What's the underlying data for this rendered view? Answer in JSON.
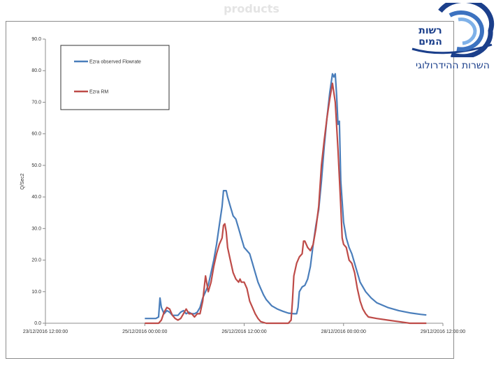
{
  "slide": {
    "title": "products"
  },
  "logo": {
    "name": "רשות המים",
    "service": "השרות ההידרולוגי"
  },
  "chart_data": {
    "type": "line",
    "ylabel": "Q/Sec2",
    "xlabel": "",
    "ylim": [
      0,
      90
    ],
    "yticks": [
      0,
      10,
      20,
      30,
      40,
      50,
      60,
      70,
      80,
      90
    ],
    "ytick_labels": [
      "0.0",
      "10.0",
      "20.0",
      "30.0",
      "40.0",
      "50.0",
      "60.0",
      "70.0",
      "80.0",
      "90.0"
    ],
    "x_unit": "hours from 23/12/2016 12:00:00",
    "xlim": [
      0,
      144
    ],
    "xticks": [
      0,
      36,
      72,
      108,
      144
    ],
    "xtick_labels": [
      "23/12/2016 12:00:00",
      "25/12/2016 00:00:00",
      "26/12/2016 12:00:00",
      "28/12/2016 00:00:00",
      "29/12/2016 12:00:00"
    ],
    "grid": false,
    "legend": "top-left",
    "colors": {
      "observed": "#4a7ebb",
      "rm": "#be4b48"
    },
    "series": [
      {
        "name": "Ezra observed Flowrate",
        "color": "#4a7ebb",
        "points": [
          [
            36,
            1.5
          ],
          [
            40,
            1.5
          ],
          [
            41,
            2
          ],
          [
            41.5,
            8
          ],
          [
            42,
            5
          ],
          [
            43,
            3
          ],
          [
            44,
            4
          ],
          [
            45,
            3.5
          ],
          [
            46,
            2.5
          ],
          [
            48,
            2.5
          ],
          [
            49,
            3.5
          ],
          [
            50,
            4
          ],
          [
            51,
            3
          ],
          [
            52,
            3.5
          ],
          [
            53,
            3
          ],
          [
            54,
            3
          ],
          [
            55,
            3.5
          ],
          [
            56,
            5
          ],
          [
            57,
            8
          ],
          [
            58,
            10
          ],
          [
            59,
            12
          ],
          [
            60,
            16
          ],
          [
            61,
            20
          ],
          [
            62,
            25
          ],
          [
            63,
            31
          ],
          [
            64,
            37
          ],
          [
            64.5,
            42
          ],
          [
            65.5,
            42
          ],
          [
            66,
            40
          ],
          [
            67,
            37
          ],
          [
            68,
            34
          ],
          [
            69,
            33
          ],
          [
            70,
            30
          ],
          [
            71,
            27
          ],
          [
            72,
            24
          ],
          [
            73,
            23
          ],
          [
            74,
            22
          ],
          [
            75,
            19
          ],
          [
            76,
            16
          ],
          [
            77,
            13
          ],
          [
            78,
            11
          ],
          [
            79,
            9
          ],
          [
            80,
            7.5
          ],
          [
            81,
            6.5
          ],
          [
            82,
            5.5
          ],
          [
            84,
            4.5
          ],
          [
            86,
            3.8
          ],
          [
            88,
            3.2
          ],
          [
            90,
            3
          ],
          [
            91,
            3
          ],
          [
            91.5,
            5
          ],
          [
            92,
            10
          ],
          [
            93,
            11.5
          ],
          [
            94,
            12
          ],
          [
            95,
            14
          ],
          [
            96,
            18
          ],
          [
            97,
            25
          ],
          [
            98,
            31
          ],
          [
            99,
            36
          ],
          [
            100,
            45
          ],
          [
            101,
            56
          ],
          [
            102,
            65
          ],
          [
            103,
            73
          ],
          [
            104,
            79
          ],
          [
            104.5,
            78
          ],
          [
            105,
            79
          ],
          [
            105.5,
            72
          ],
          [
            106,
            63
          ],
          [
            106.5,
            64
          ],
          [
            107,
            45
          ],
          [
            108,
            32
          ],
          [
            109,
            27
          ],
          [
            110,
            24
          ],
          [
            111,
            22
          ],
          [
            112,
            19
          ],
          [
            113,
            16
          ],
          [
            114,
            13
          ],
          [
            116,
            10
          ],
          [
            118,
            8
          ],
          [
            120,
            6.5
          ],
          [
            124,
            5
          ],
          [
            128,
            4
          ],
          [
            132,
            3.3
          ],
          [
            136,
            2.8
          ],
          [
            138,
            2.6
          ]
        ]
      },
      {
        "name": "Ezra RM",
        "color": "#be4b48",
        "points": [
          [
            36,
            0
          ],
          [
            41,
            0
          ],
          [
            42,
            1
          ],
          [
            43,
            3.5
          ],
          [
            44,
            5
          ],
          [
            45,
            4.5
          ],
          [
            46,
            2.5
          ],
          [
            47,
            1.5
          ],
          [
            48,
            1
          ],
          [
            49,
            1.5
          ],
          [
            50,
            3
          ],
          [
            51,
            4.5
          ],
          [
            52,
            3
          ],
          [
            53,
            3
          ],
          [
            54,
            2
          ],
          [
            55,
            3
          ],
          [
            56,
            3
          ],
          [
            57,
            7
          ],
          [
            58,
            15
          ],
          [
            59,
            10
          ],
          [
            60,
            13
          ],
          [
            61,
            18
          ],
          [
            62,
            22
          ],
          [
            63,
            25
          ],
          [
            64,
            27
          ],
          [
            64.5,
            31
          ],
          [
            65,
            31.5
          ],
          [
            65.5,
            29
          ],
          [
            66,
            24
          ],
          [
            67,
            20
          ],
          [
            68,
            16
          ],
          [
            69,
            14
          ],
          [
            70,
            13
          ],
          [
            70.5,
            14
          ],
          [
            71,
            13
          ],
          [
            72,
            13
          ],
          [
            73,
            11
          ],
          [
            74,
            7
          ],
          [
            75,
            5
          ],
          [
            76,
            3
          ],
          [
            77,
            1.5
          ],
          [
            78,
            0.5
          ],
          [
            80,
            0
          ],
          [
            86,
            0
          ],
          [
            88,
            0
          ],
          [
            89,
            1
          ],
          [
            89.5,
            7
          ],
          [
            90,
            15
          ],
          [
            91,
            19
          ],
          [
            92,
            21
          ],
          [
            93,
            22
          ],
          [
            93.5,
            26
          ],
          [
            94,
            26
          ],
          [
            95,
            24
          ],
          [
            96,
            23
          ],
          [
            97,
            25
          ],
          [
            98,
            30
          ],
          [
            99,
            37
          ],
          [
            100,
            50
          ],
          [
            101,
            58
          ],
          [
            102,
            65
          ],
          [
            103,
            71
          ],
          [
            104,
            76
          ],
          [
            105,
            70
          ],
          [
            106,
            55
          ],
          [
            107,
            37
          ],
          [
            107.5,
            27
          ],
          [
            108,
            25
          ],
          [
            109,
            24
          ],
          [
            110,
            20
          ],
          [
            111,
            19
          ],
          [
            112,
            16
          ],
          [
            113,
            11
          ],
          [
            114,
            7
          ],
          [
            115,
            4.5
          ],
          [
            116,
            3
          ],
          [
            117,
            2
          ],
          [
            120,
            1.5
          ],
          [
            124,
            1
          ],
          [
            128,
            0.5
          ],
          [
            132,
            0
          ],
          [
            138,
            0
          ]
        ]
      }
    ]
  }
}
